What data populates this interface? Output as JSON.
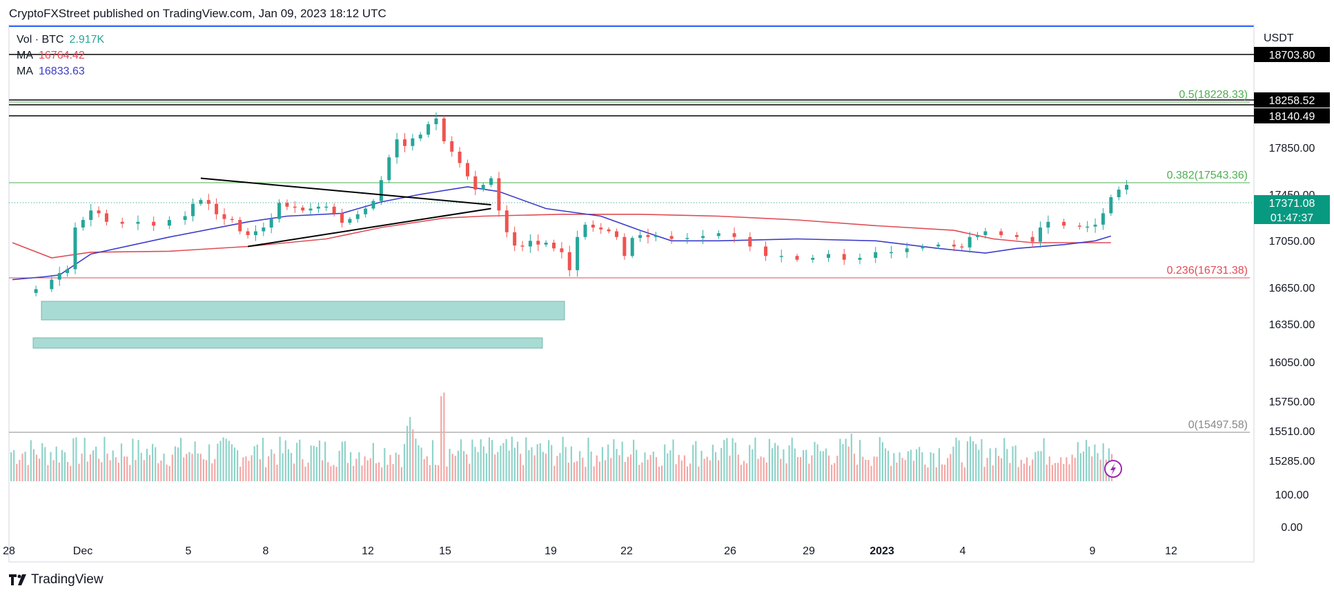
{
  "header": {
    "published": "CryptoFXStreet published on TradingView.com, Jan 09, 2023 18:12 UTC"
  },
  "footer": {
    "brand": "TradingView",
    "icon": "tradingview-logo-icon"
  },
  "legend": {
    "vol_label": "Vol · BTC",
    "vol_value": "2.917K",
    "ma1_label": "MA",
    "ma1_value": "16764.42",
    "ma2_label": "MA",
    "ma2_value": "16833.63"
  },
  "colors": {
    "up": "#26a69a",
    "down": "#ef5350",
    "ma_red": "#e04b55",
    "ma_blue": "#3b3bc9",
    "fib": "#4caf50",
    "zone": "#a8dbd4"
  },
  "chart_data": {
    "type": "candlestick",
    "currency": "USDT",
    "x_ticks": [
      "28",
      "Dec",
      "5",
      "8",
      "12",
      "15",
      "19",
      "22",
      "26",
      "29",
      "2023",
      "4",
      "9",
      "12"
    ],
    "y_ticks": [
      "18703.80",
      "18258.52",
      "18140.49",
      "17850.00",
      "17450.00",
      "17371.08",
      "17050.00",
      "16650.00",
      "16350.00",
      "16050.00",
      "15750.00",
      "15510.00",
      "15285.00",
      "100.00",
      "0.00"
    ],
    "current_price": "17371.08",
    "countdown": "01:47:37",
    "horizontal_levels": [
      "18703.80",
      "18258.52",
      "18140.49"
    ],
    "fib_levels": [
      {
        "label": "0.5(18228.33)",
        "value": 18228.33,
        "color": "#4caf50"
      },
      {
        "label": "0.382(17543.36)",
        "value": 17543.36,
        "color": "#4caf50"
      },
      {
        "label": "0.236(16731.38)",
        "value": 16731.38,
        "color": "#e04b55"
      },
      {
        "label": "0(15497.58)",
        "value": 15497.58,
        "color": "#888888"
      }
    ],
    "price_path": [
      [
        0,
        16210
      ],
      [
        3,
        16250
      ],
      [
        5,
        16350
      ],
      [
        6,
        16420
      ],
      [
        7,
        16460
      ],
      [
        8,
        16900
      ],
      [
        9,
        16980
      ],
      [
        10,
        17080
      ],
      [
        11,
        17050
      ],
      [
        12,
        16960
      ],
      [
        14,
        16940
      ],
      [
        16,
        16960
      ],
      [
        18,
        16920
      ],
      [
        20,
        16980
      ],
      [
        22,
        17020
      ],
      [
        23,
        17150
      ],
      [
        24,
        17190
      ],
      [
        25,
        17150
      ],
      [
        26,
        17040
      ],
      [
        27,
        16990
      ],
      [
        28,
        16980
      ],
      [
        29,
        16860
      ],
      [
        30,
        16820
      ],
      [
        31,
        16860
      ],
      [
        32,
        16900
      ],
      [
        33,
        16990
      ],
      [
        34,
        17160
      ],
      [
        35,
        17120
      ],
      [
        36,
        17110
      ],
      [
        37,
        17080
      ],
      [
        38,
        17100
      ],
      [
        39,
        17120
      ],
      [
        40,
        17120
      ],
      [
        41,
        17050
      ],
      [
        42,
        16950
      ],
      [
        43,
        16990
      ],
      [
        44,
        17040
      ],
      [
        45,
        17100
      ],
      [
        46,
        17180
      ],
      [
        47,
        17400
      ],
      [
        48,
        17640
      ],
      [
        49,
        17830
      ],
      [
        50,
        17760
      ],
      [
        51,
        17840
      ],
      [
        52,
        17880
      ],
      [
        53,
        17990
      ],
      [
        54,
        18050
      ],
      [
        55,
        17810
      ],
      [
        56,
        17700
      ],
      [
        57,
        17580
      ],
      [
        58,
        17440
      ],
      [
        59,
        17300
      ],
      [
        60,
        17350
      ],
      [
        61,
        17420
      ],
      [
        62,
        17080
      ],
      [
        63,
        16850
      ],
      [
        64,
        16710
      ],
      [
        65,
        16700
      ],
      [
        66,
        16760
      ],
      [
        67,
        16720
      ],
      [
        68,
        16740
      ],
      [
        69,
        16680
      ],
      [
        70,
        16640
      ],
      [
        71,
        16450
      ],
      [
        72,
        16800
      ],
      [
        73,
        16930
      ],
      [
        74,
        16900
      ],
      [
        75,
        16880
      ],
      [
        76,
        16860
      ],
      [
        77,
        16800
      ],
      [
        78,
        16600
      ],
      [
        79,
        16790
      ],
      [
        80,
        16820
      ],
      [
        81,
        16800
      ],
      [
        82,
        16810
      ],
      [
        84,
        16780
      ],
      [
        86,
        16790
      ],
      [
        88,
        16810
      ],
      [
        90,
        16840
      ],
      [
        92,
        16800
      ],
      [
        94,
        16700
      ],
      [
        96,
        16600
      ],
      [
        98,
        16600
      ],
      [
        100,
        16560
      ],
      [
        102,
        16580
      ],
      [
        104,
        16620
      ],
      [
        106,
        16560
      ],
      [
        108,
        16580
      ],
      [
        110,
        16640
      ],
      [
        112,
        16640
      ],
      [
        114,
        16680
      ],
      [
        116,
        16700
      ],
      [
        118,
        16720
      ],
      [
        120,
        16700
      ],
      [
        121,
        16690
      ],
      [
        122,
        16800
      ],
      [
        123,
        16820
      ],
      [
        124,
        16860
      ],
      [
        126,
        16820
      ],
      [
        128,
        16800
      ],
      [
        130,
        16750
      ],
      [
        131,
        16900
      ],
      [
        132,
        16960
      ],
      [
        134,
        16920
      ],
      [
        136,
        16910
      ],
      [
        137,
        16910
      ],
      [
        138,
        16930
      ],
      [
        139,
        17050
      ],
      [
        140,
        17220
      ],
      [
        141,
        17300
      ],
      [
        142,
        17350
      ]
    ],
    "ma_red": [
      [
        0,
        16740
      ],
      [
        5,
        16580
      ],
      [
        10,
        16640
      ],
      [
        20,
        16650
      ],
      [
        30,
        16700
      ],
      [
        40,
        16780
      ],
      [
        47,
        16900
      ],
      [
        55,
        17000
      ],
      [
        60,
        17020
      ],
      [
        70,
        17040
      ],
      [
        80,
        17040
      ],
      [
        90,
        17020
      ],
      [
        100,
        16980
      ],
      [
        110,
        16920
      ],
      [
        120,
        16870
      ],
      [
        125,
        16780
      ],
      [
        130,
        16740
      ],
      [
        136,
        16740
      ],
      [
        140,
        16740
      ]
    ],
    "ma_blue": [
      [
        0,
        16350
      ],
      [
        4,
        16380
      ],
      [
        6,
        16400
      ],
      [
        10,
        16620
      ],
      [
        20,
        16800
      ],
      [
        30,
        16960
      ],
      [
        35,
        17020
      ],
      [
        42,
        17050
      ],
      [
        47,
        17170
      ],
      [
        52,
        17250
      ],
      [
        58,
        17330
      ],
      [
        62,
        17280
      ],
      [
        68,
        17100
      ],
      [
        75,
        17020
      ],
      [
        80,
        16870
      ],
      [
        84,
        16760
      ],
      [
        90,
        16760
      ],
      [
        100,
        16780
      ],
      [
        110,
        16760
      ],
      [
        118,
        16680
      ],
      [
        124,
        16630
      ],
      [
        128,
        16680
      ],
      [
        134,
        16720
      ],
      [
        138,
        16760
      ],
      [
        140,
        16810
      ]
    ],
    "triangle": {
      "upper": [
        [
          24,
          17420
        ],
        [
          61,
          17140
        ]
      ],
      "lower": [
        [
          30,
          16700
        ],
        [
          61,
          17100
        ]
      ]
    },
    "demand_zones": [
      {
        "from_x": 7,
        "to_x": 72,
        "low": 16430,
        "high": 16560
      },
      {
        "from_x": 3,
        "to_x": 69,
        "low": 16140,
        "high": 16220
      }
    ],
    "volume_range": [
      0,
      100
    ]
  }
}
